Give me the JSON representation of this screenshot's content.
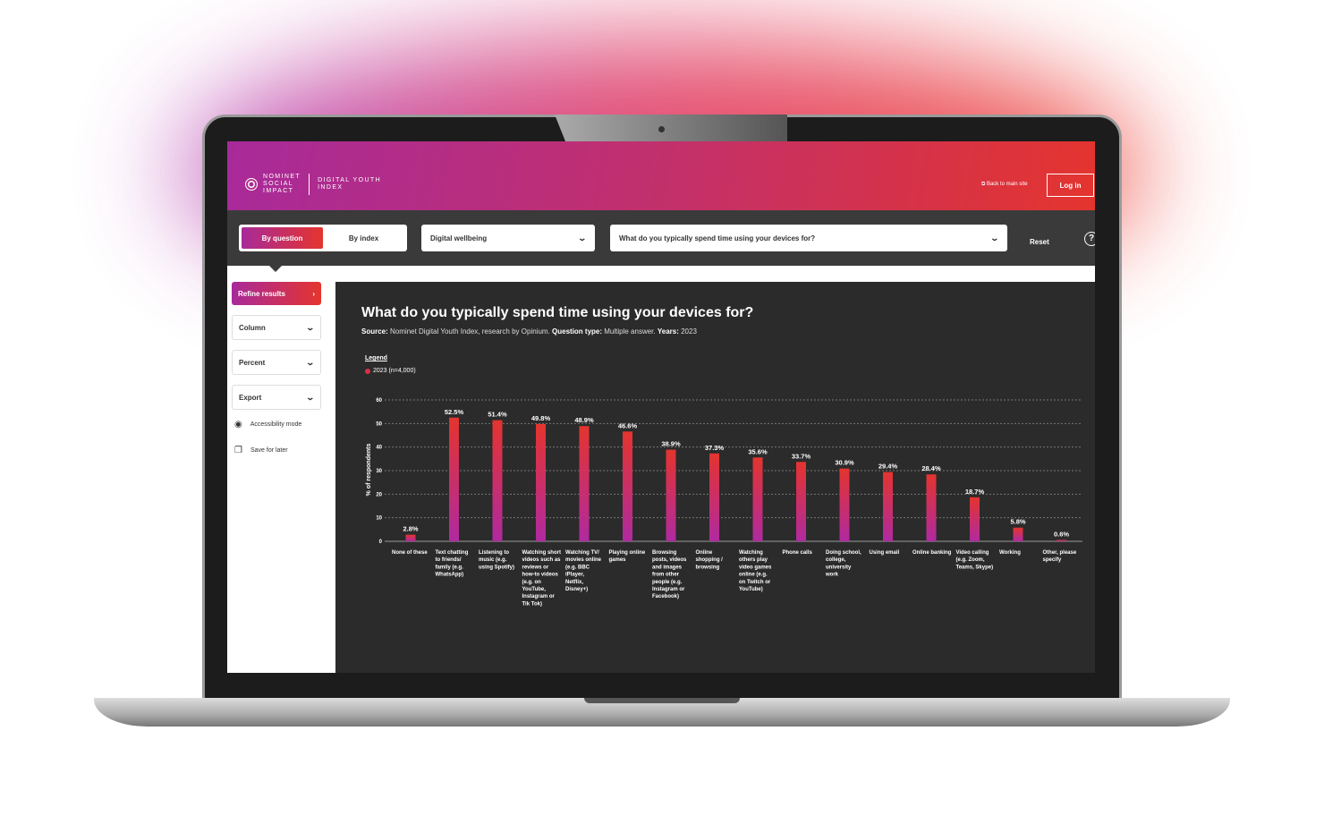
{
  "header": {
    "logo_left": [
      "NOMINET",
      "SOCIAL",
      "IMPACT"
    ],
    "logo_right": [
      "DIGITAL YOUTH",
      "INDEX"
    ],
    "back_link": "Back to main site",
    "login": "Log in"
  },
  "toolbar": {
    "tabs": [
      "By question",
      "By index"
    ],
    "category": "Digital wellbeing",
    "question": "What do you typically spend time using your devices for?",
    "reset": "Reset",
    "help": "?"
  },
  "sidebar": {
    "refine": "Refine results",
    "column": "Column",
    "percent": "Percent",
    "export": "Export",
    "accessibility": "Accessibility mode",
    "save": "Save for later"
  },
  "chart_header": {
    "title": "What do you typically spend time using your devices for?",
    "source_label": "Source:",
    "source": " Nominet Digital Youth Index, research by Opinium. ",
    "qtype_label": "Question type:",
    "qtype": " Multiple answer. ",
    "years_label": "Years:",
    "years": " 2023",
    "legend_title": "Legend",
    "legend_item": "2023 (n=4,000)"
  },
  "colors": {
    "bar_top": "#e4342e",
    "bar_bottom": "#b02aa0"
  },
  "chart_data": {
    "type": "bar",
    "title": "What do you typically spend time using your devices for?",
    "ylabel": "% of respondents",
    "ylim": [
      0,
      60
    ],
    "yticks": [
      0,
      10,
      20,
      30,
      40,
      50,
      60
    ],
    "grid": true,
    "legend": "top-left",
    "series": [
      {
        "name": "2023 (n=4,000)"
      }
    ],
    "categories": [
      "None of these",
      "Text chatting to friends/ family (e.g. WhatsApp)",
      "Listening to music (e.g. using Spotify)",
      "Watching short videos such as reviews or how-to videos (e.g. on YouTube, Instagram or Tik Tok)",
      "Watching TV/ movies online (e.g. BBC iPlayer, Netflix, Disney+)",
      "Playing online games",
      "Browsing posts, videos and images from other people (e.g. Instagram or Facebook)",
      "Online shopping / browsing",
      "Watching others play video games online (e.g. on Twitch or YouTube)",
      "Phone calls",
      "Doing school, college, university work",
      "Using email",
      "Online banking",
      "Video calling (e.g. Zoom, Teams, Skype)",
      "Working",
      "Other, please specify"
    ],
    "values": [
      2.8,
      52.5,
      51.4,
      49.8,
      48.9,
      46.6,
      38.9,
      37.3,
      35.6,
      33.7,
      30.9,
      29.4,
      28.4,
      18.7,
      5.8,
      0.6
    ]
  }
}
